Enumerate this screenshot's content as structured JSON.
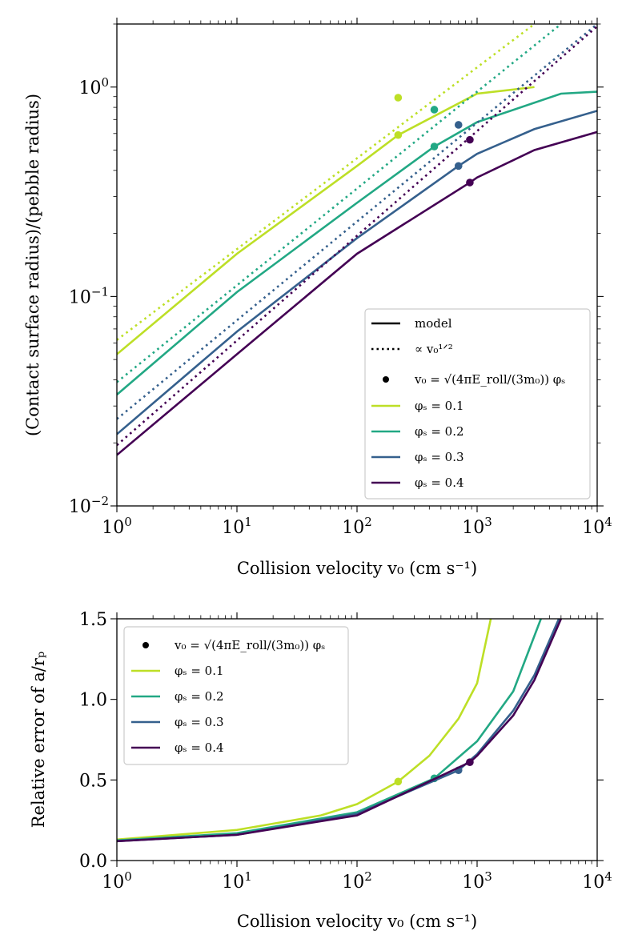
{
  "colors": {
    "phi_0_1": "#bddf26",
    "phi_0_2": "#22a884",
    "phi_0_3": "#35608d",
    "phi_0_4": "#440154",
    "marker": "#000000"
  },
  "chart_data": [
    {
      "type": "line",
      "panel": "top",
      "xscale": "log",
      "yscale": "log",
      "xlim": [
        1,
        10000
      ],
      "ylim": [
        0.01,
        2.0
      ],
      "xlabel": "Collision velocity v₀ (cm s⁻¹)",
      "ylabel": "(Contact surface radius)/(pebble radius)",
      "xtick_labels": [
        {
          "v": 1,
          "base": "10",
          "exp": "0"
        },
        {
          "v": 10,
          "base": "10",
          "exp": "1"
        },
        {
          "v": 100,
          "base": "10",
          "exp": "2"
        },
        {
          "v": 1000,
          "base": "10",
          "exp": "3"
        },
        {
          "v": 10000,
          "base": "10",
          "exp": "4"
        }
      ],
      "ytick_labels": [
        {
          "v": 0.01,
          "base": "10",
          "exp": "−2"
        },
        {
          "v": 0.1,
          "base": "10",
          "exp": "−1"
        },
        {
          "v": 1,
          "base": "10",
          "exp": "0"
        }
      ],
      "legend": {
        "placement": "lower-right",
        "entries": [
          {
            "style": "solid",
            "label": "model"
          },
          {
            "style": "dotted",
            "label": "∝ v₀¹ᐟ²"
          },
          {
            "style": "marker",
            "label": "v₀ = √(4πE_roll/(3m₀)) φₛ"
          },
          {
            "style": "line",
            "color_key": "phi_0_1",
            "label": "φₛ = 0.1"
          },
          {
            "style": "line",
            "color_key": "phi_0_2",
            "label": "φₛ = 0.2"
          },
          {
            "style": "line",
            "color_key": "phi_0_3",
            "label": "φₛ = 0.3"
          },
          {
            "style": "line",
            "color_key": "phi_0_4",
            "label": "φₛ = 0.4"
          }
        ]
      },
      "series": [
        {
          "name": "φₛ = 0.1",
          "color_key": "phi_0_1",
          "model": [
            [
              1,
              0.053
            ],
            [
              10,
              0.16
            ],
            [
              100,
              0.42
            ],
            [
              220,
              0.59
            ],
            [
              1000,
              0.93
            ],
            [
              3000,
              1.0
            ]
          ],
          "scaling": [
            [
              1,
              0.062
            ],
            [
              3000,
              2.0
            ]
          ],
          "markers": [
            [
              220,
              0.59
            ],
            [
              220,
              0.89
            ]
          ]
        },
        {
          "name": "φₛ = 0.2",
          "color_key": "phi_0_2",
          "model": [
            [
              1,
              0.034
            ],
            [
              10,
              0.105
            ],
            [
              100,
              0.28
            ],
            [
              440,
              0.52
            ],
            [
              1000,
              0.68
            ],
            [
              5000,
              0.93
            ],
            [
              10000,
              0.95
            ]
          ],
          "scaling": [
            [
              1,
              0.039
            ],
            [
              5000,
              2.0
            ]
          ],
          "markers": [
            [
              440,
              0.52
            ],
            [
              440,
              0.78
            ]
          ]
        },
        {
          "name": "φₛ = 0.3",
          "color_key": "phi_0_3",
          "model": [
            [
              1,
              0.022
            ],
            [
              10,
              0.068
            ],
            [
              100,
              0.19
            ],
            [
              700,
              0.42
            ],
            [
              1000,
              0.48
            ],
            [
              3000,
              0.63
            ],
            [
              10000,
              0.77
            ]
          ],
          "scaling": [
            [
              1,
              0.026
            ],
            [
              10000,
              2.0
            ]
          ],
          "markers": [
            [
              700,
              0.42
            ],
            [
              700,
              0.66
            ]
          ]
        },
        {
          "name": "φₛ = 0.4",
          "color_key": "phi_0_4",
          "model": [
            [
              1,
              0.0175
            ],
            [
              10,
              0.053
            ],
            [
              100,
              0.16
            ],
            [
              870,
              0.35
            ],
            [
              1000,
              0.37
            ],
            [
              3000,
              0.5
            ],
            [
              10000,
              0.61
            ]
          ],
          "scaling": [
            [
              1,
              0.0195
            ],
            [
              10000,
              1.95
            ]
          ],
          "markers": [
            [
              870,
              0.35
            ],
            [
              870,
              0.56
            ]
          ]
        }
      ]
    },
    {
      "type": "line",
      "panel": "bottom",
      "xscale": "log",
      "yscale": "linear",
      "xlim": [
        1,
        10000
      ],
      "ylim": [
        0.0,
        1.5
      ],
      "xlabel": "Collision velocity v₀ (cm s⁻¹)",
      "ylabel": "Relative error of a/rₚ",
      "xtick_labels": [
        {
          "v": 1,
          "base": "10",
          "exp": "0"
        },
        {
          "v": 10,
          "base": "10",
          "exp": "1"
        },
        {
          "v": 100,
          "base": "10",
          "exp": "2"
        },
        {
          "v": 1000,
          "base": "10",
          "exp": "3"
        },
        {
          "v": 10000,
          "base": "10",
          "exp": "4"
        }
      ],
      "ytick_labels": [
        "0.0",
        "0.5",
        "1.0",
        "1.5"
      ],
      "ytick_values": [
        0.0,
        0.5,
        1.0,
        1.5
      ],
      "legend": {
        "placement": "upper-left",
        "entries": [
          {
            "style": "marker",
            "label": "v₀ = √(4πE_roll/(3m₀)) φₛ"
          },
          {
            "style": "line",
            "color_key": "phi_0_1",
            "label": "φₛ = 0.1"
          },
          {
            "style": "line",
            "color_key": "phi_0_2",
            "label": "φₛ = 0.2"
          },
          {
            "style": "line",
            "color_key": "phi_0_3",
            "label": "φₛ = 0.3"
          },
          {
            "style": "line",
            "color_key": "phi_0_4",
            "label": "φₛ = 0.4"
          }
        ]
      },
      "series": [
        {
          "name": "φₛ = 0.1",
          "color_key": "phi_0_1",
          "values": [
            [
              1,
              0.13
            ],
            [
              10,
              0.19
            ],
            [
              50,
              0.28
            ],
            [
              100,
              0.35
            ],
            [
              220,
              0.49
            ],
            [
              400,
              0.65
            ],
            [
              700,
              0.88
            ],
            [
              1000,
              1.1
            ],
            [
              1300,
              1.5
            ]
          ],
          "marker": [
            220,
            0.49
          ]
        },
        {
          "name": "φₛ = 0.2",
          "color_key": "phi_0_2",
          "values": [
            [
              1,
              0.125
            ],
            [
              10,
              0.17
            ],
            [
              100,
              0.3
            ],
            [
              440,
              0.51
            ],
            [
              1000,
              0.74
            ],
            [
              2000,
              1.05
            ],
            [
              3400,
              1.5
            ]
          ],
          "marker": [
            440,
            0.51
          ]
        },
        {
          "name": "φₛ = 0.3",
          "color_key": "phi_0_3",
          "values": [
            [
              1,
              0.12
            ],
            [
              10,
              0.16
            ],
            [
              100,
              0.29
            ],
            [
              700,
              0.56
            ],
            [
              1000,
              0.66
            ],
            [
              2000,
              0.93
            ],
            [
              3000,
              1.15
            ],
            [
              4800,
              1.5
            ]
          ],
          "marker": [
            700,
            0.56
          ]
        },
        {
          "name": "φₛ = 0.4",
          "color_key": "phi_0_4",
          "values": [
            [
              1,
              0.12
            ],
            [
              10,
              0.16
            ],
            [
              100,
              0.28
            ],
            [
              870,
              0.61
            ],
            [
              1000,
              0.65
            ],
            [
              2000,
              0.9
            ],
            [
              3000,
              1.12
            ],
            [
              5000,
              1.5
            ]
          ],
          "marker": [
            870,
            0.61
          ]
        }
      ]
    }
  ]
}
